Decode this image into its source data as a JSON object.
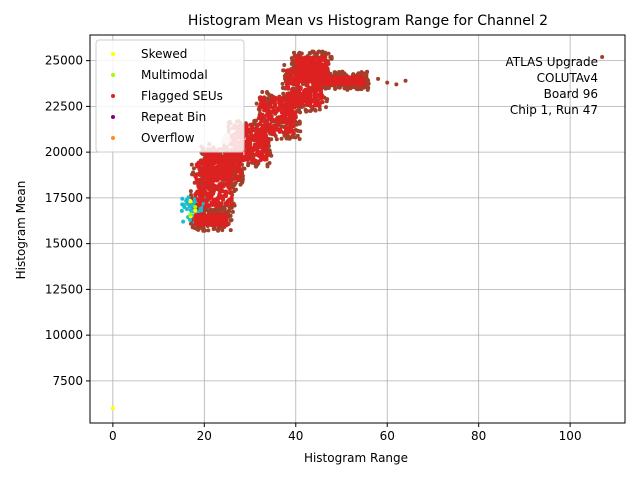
{
  "chart_data": {
    "type": "scatter",
    "title": "Histogram Mean vs Histogram Range for Channel 2",
    "xlabel": "Histogram Range",
    "ylabel": "Histogram Mean",
    "xlim": [
      -5,
      112
    ],
    "ylim": [
      5200,
      26400
    ],
    "xticks": [
      0,
      20,
      40,
      60,
      80,
      100
    ],
    "yticks": [
      7500,
      10000,
      12500,
      15000,
      17500,
      20000,
      22500,
      25000
    ],
    "xtick_labels": [
      "0",
      "20",
      "40",
      "60",
      "80",
      "100"
    ],
    "ytick_labels": [
      "7500",
      "10000",
      "12500",
      "15000",
      "17500",
      "20000",
      "22500",
      "25000"
    ],
    "grid": true,
    "legend_position": "top-left",
    "annotation": [
      "ATLAS Upgrade",
      "COLUTAv4",
      "Board 96",
      "Chip 1, Run 47"
    ],
    "background_series_color": "#a0402a",
    "series": [
      {
        "name": "Skewed",
        "color": "#ffff00",
        "points": [
          [
            0,
            6000
          ],
          [
            17,
            16500
          ],
          [
            18,
            16800
          ],
          [
            17,
            17300
          ]
        ]
      },
      {
        "name": "Multimodal",
        "color": "#99ff00",
        "points": [
          [
            17,
            16600
          ],
          [
            18,
            17000
          ]
        ]
      },
      {
        "name": "Flagged SEUs",
        "color": "#dd2020",
        "bands": [
          [
            [
              18,
              16000
            ],
            [
              25,
              16600
            ]
          ],
          [
            [
              18,
              17000
            ],
            [
              26,
              19500
            ]
          ],
          [
            [
              20,
              18500
            ],
            [
              28,
              20200
            ]
          ],
          [
            [
              26,
              19500
            ],
            [
              34,
              21500
            ]
          ],
          [
            [
              32,
              21000
            ],
            [
              40,
              23000
            ]
          ],
          [
            [
              38,
              22500
            ],
            [
              46,
              24500
            ]
          ],
          [
            [
              40,
              24000
            ],
            [
              47,
              25200
            ]
          ],
          [
            [
              45,
              23700
            ],
            [
              55,
              24100
            ]
          ]
        ]
      },
      {
        "name": "Repeat Bin",
        "color": "#800080",
        "points": []
      },
      {
        "name": "Overflow",
        "color": "#ff8c1a",
        "points": []
      }
    ],
    "cyan_cluster": {
      "color": "#17becf",
      "x_range": [
        15,
        20
      ],
      "y_range": [
        16000,
        17600
      ]
    },
    "pink_cluster": {
      "color": "#f4b8c0",
      "x_range": [
        24,
        29
      ],
      "y_range": [
        19800,
        21000
      ]
    },
    "outlier_points": [
      [
        107,
        25200
      ],
      [
        64,
        23900
      ],
      [
        62,
        23700
      ],
      [
        60,
        23800
      ],
      [
        58,
        24000
      ]
    ]
  }
}
